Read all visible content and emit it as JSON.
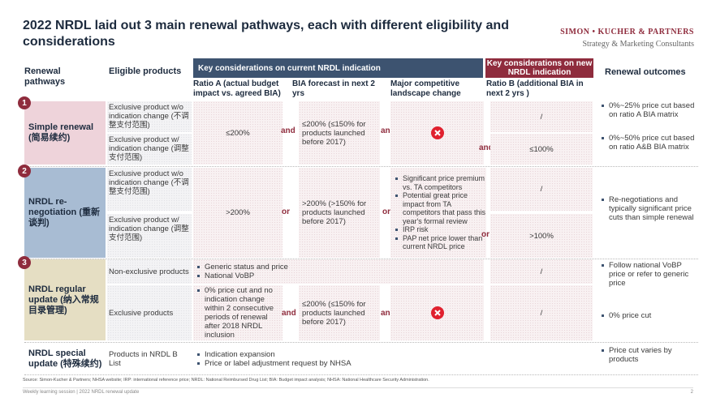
{
  "header": {
    "title": "2022 NRDL laid out 3 main renewal pathways, each with different eligibility and considerations",
    "brand": "SIMON • KUCHER & PARTNERS",
    "tagline": "Strategy & Marketing Consultants"
  },
  "table": {
    "column_headers": {
      "pathways": "Renewal pathways",
      "products": "Eligible products",
      "current_group": "Key considerations on current NRDL indication",
      "new_group": "Key considerations on new NRDL indication",
      "ratio_a": "Ratio A (actual budget impact vs. agreed BIA)",
      "bia_forecast": "BIA forecast in next 2 yrs",
      "competitive": "Major competitive landscape change",
      "ratio_b": "Ratio B (additional BIA in next 2 yrs )",
      "outcomes": "Renewal outcomes"
    },
    "rows": [
      {
        "number": "1",
        "pathway": "Simple renewal (简易续约)",
        "products": [
          "Exclusive product w/o indication change (不调整支付范围)",
          "Exclusive product w/ indication change (调整支付范围)"
        ],
        "ratio_a": "≤200%",
        "link_1": "and",
        "bia_forecast": "≤200% (≤150% for products launched before 2017)",
        "link_2": "and",
        "link_3": "and",
        "ratio_b": [
          "/",
          "≤100%"
        ],
        "outcomes": [
          "0%~25% price cut based on ratio A BIA matrix",
          "0%~50% price cut based on ratio A&B BIA matrix"
        ]
      },
      {
        "number": "2",
        "pathway": "NRDL re-negotiation (重新谈判)",
        "products": [
          "Exclusive product w/o indication change (不调整支付范围)",
          "Exclusive product w/ indication change (调整支付范围)"
        ],
        "ratio_a": ">200%",
        "link_1": "or",
        "bia_forecast": ">200% (>150% for products launched before 2017)",
        "link_2": "or",
        "competitive": [
          "Significant price premium vs. TA competitors",
          "Potential great price impact from TA competitors that pass this year's formal review",
          "IRP risk",
          "PAP net price lower than current NRDL price"
        ],
        "link_3": "or",
        "ratio_b": [
          "/",
          ">100%"
        ],
        "outcomes": [
          "Re-negotiations and typically significant price cuts than simple renewal"
        ]
      },
      {
        "number": "3",
        "pathway": "NRDL regular update (纳入常规目录管理)",
        "products": [
          "Non-exclusive products",
          "Exclusive products"
        ],
        "non_exclusive_considerations": [
          "Generic status and price",
          "National VoBP"
        ],
        "ratio_a": [
          "0% price cut and no indication change within 2 consecutive periods of renewal after 2018 NRDL inclusion"
        ],
        "link_1": "and",
        "bia_forecast": "≤200% (≤150% for products launched before 2017)",
        "link_2": "and",
        "ratio_b": [
          "/",
          "/"
        ],
        "outcomes": [
          "Follow national VoBP price or refer to generic price",
          "0% price cut"
        ]
      },
      {
        "pathway": "NRDL special update (特殊续约)",
        "products": [
          "Products in NRDL B List"
        ],
        "considerations": [
          "Indication expansion",
          "Price or label adjustment request by NHSA"
        ],
        "outcomes": [
          "Price cut varies by products"
        ]
      }
    ]
  },
  "footer": {
    "source": "Source: Simon-Kucher & Partners; NHSA website; IRP: international reference price; NRDL: National Reimbursed Drug List; BIA: Budget impact analysis; NHSA: National Healthcare Security Administration.",
    "session": "Weekly learning session | 2022 NRDL renewal update",
    "page": "2"
  }
}
